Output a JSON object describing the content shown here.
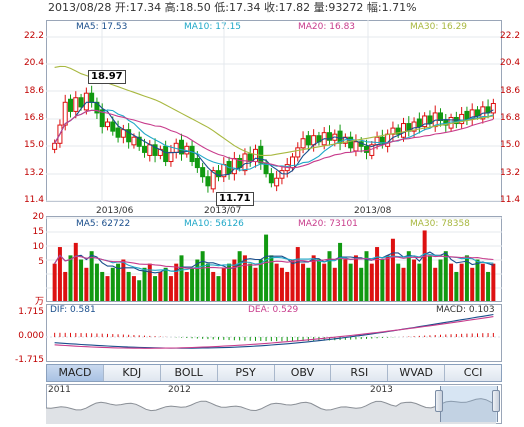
{
  "header": {
    "info_text": "2013/08/28 开:17.34 高:18.50 低:17.34 收:17.82 量:93272 幅:1.71%"
  },
  "colors": {
    "up": "#dd1111",
    "down": "#119911",
    "ma5": "#1a4e8c",
    "ma10": "#20a8c8",
    "ma20": "#c83c8c",
    "ma30": "#a8b840",
    "frame": "#9aa6b8",
    "axis_red": "#c00000"
  },
  "price_panel": {
    "legend": {
      "ma5": "MA5: 17.53",
      "ma10": "MA10: 17.15",
      "ma20": "MA20: 16.83",
      "ma30": "MA30: 16.29"
    },
    "y_ticks": [
      "22.2",
      "20.4",
      "18.6",
      "16.8",
      "15.0",
      "13.2",
      "11.4"
    ],
    "x_ticks": [
      "2013/06",
      "2013/07",
      "2013/08"
    ],
    "high_callout": "18.97",
    "low_callout": "11.71"
  },
  "volume_panel": {
    "legend": {
      "ma5": "MA5: 62722",
      "ma10": "MA10: 56126",
      "ma20": "MA20: 73101",
      "ma30": "MA30: 78358"
    },
    "y_ticks": [
      "20",
      "15",
      "10",
      "5"
    ],
    "unit": "万"
  },
  "macd_panel": {
    "dif_label": "DIF: 0.581",
    "dea_label": "DEA: 0.529",
    "macd_label": "MACD: 0.103",
    "y_ticks": [
      "1.715",
      "0.000",
      "-1.715"
    ]
  },
  "tabs": [
    "MACD",
    "KDJ",
    "BOLL",
    "PSY",
    "OBV",
    "RSI",
    "WVAD",
    "CCI"
  ],
  "active_tab": "MACD",
  "overview": {
    "years": [
      "2011",
      "2012",
      "2013"
    ]
  }
}
